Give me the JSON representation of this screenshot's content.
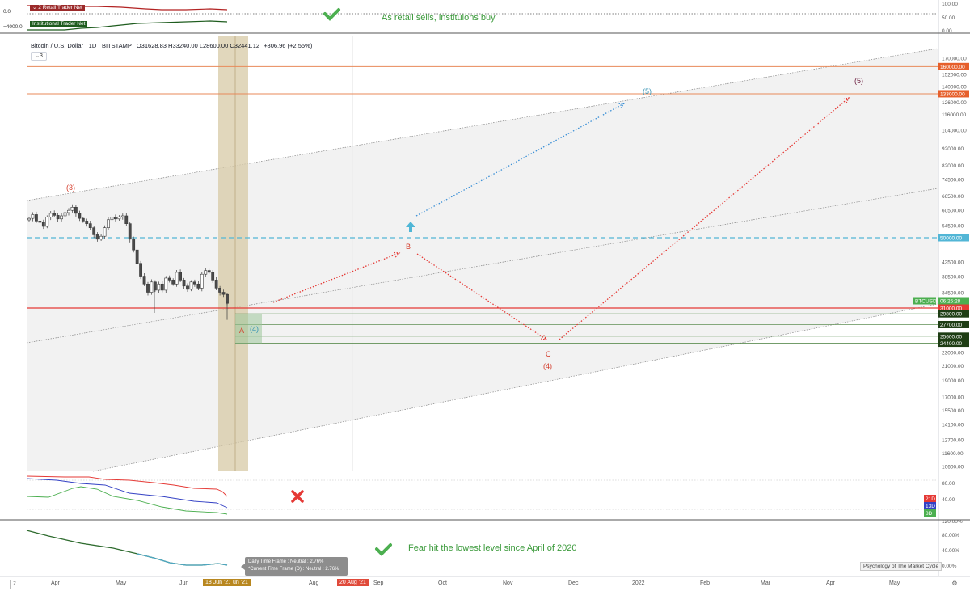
{
  "header": {
    "symbol": "Bitcoin / U.S. Dollar · 1D · BITSTAMP",
    "ohlc": "O31628.83 H33240.00 L28600.00 C32441.12",
    "change": "+806.96 (+2.55%)",
    "collapse_label": "3"
  },
  "top_pane": {
    "legend_ret": "Retail Trader Net",
    "legend_ret_prefix": "2",
    "legend_inst": "Institutional Trader Net",
    "left_values": [
      "0.0",
      "−4000.0"
    ],
    "right_ticks": [
      "100.00",
      "50.00",
      "0.00"
    ],
    "note": "As retail sells, instituions buy",
    "note_icon": "check-icon"
  },
  "mid_pane": {
    "right_ticks": [
      "80.00",
      "40.00"
    ],
    "badges": [
      "21D",
      "13D",
      "8D"
    ],
    "icon": "cross-icon"
  },
  "bottom_pane": {
    "right_ticks": [
      "120.00%",
      "80.00%",
      "40.00%",
      "0.00%"
    ],
    "note": "Fear hit the lowest level since April of 2020",
    "note_icon": "check-icon",
    "tooltip_line1": "Daily Time Frame : Neutral : 2.76%",
    "tooltip_line2": "*Current Time Frame (D) : Neutral : 2.76%",
    "watermark": "Psychology of The Market Cycle"
  },
  "x_axis": {
    "labels": [
      "Apr",
      "May",
      "Jun",
      "Aug",
      "Sep",
      "Oct",
      "Nov",
      "Dec",
      "2022",
      "Feb",
      "Mar",
      "Apr",
      "May"
    ],
    "highlight_1": "18 Jun '21",
    "highlight_1b": "un '21",
    "highlight_2": "20 Aug '21",
    "z_button": "Z"
  },
  "chart_data": {
    "type": "candlestick",
    "y_scale": "log",
    "y_ticks": [
      "170000.00",
      "152000.00",
      "140000.00",
      "126000.00",
      "116000.00",
      "104000.00",
      "92000.00",
      "82000.00",
      "74500.00",
      "66500.00",
      "60500.00",
      "54500.00",
      "50000.00",
      "42500.00",
      "38500.00",
      "34500.00",
      "31000.00",
      "27700.00",
      "25600.00",
      "24400.00",
      "23000.00",
      "21000.00",
      "19000.00",
      "17000.00",
      "15500.00",
      "14100.00",
      "12700.00",
      "11600.00",
      "10600.00"
    ],
    "price_labels": [
      {
        "text": "160000.00",
        "color": "#e65f2b"
      },
      {
        "text": "133000.00",
        "color": "#e65f2b"
      },
      {
        "text": "50000.00",
        "color": "#52b6d6"
      },
      {
        "text": "BTCUSD",
        "color": "#4caf50"
      },
      {
        "text": "06:25:28",
        "color": "#4caf50"
      },
      {
        "text": "31000.00",
        "color": "#e53935"
      },
      {
        "text": "29800.00",
        "color": "#1e3d14"
      },
      {
        "text": "27700.00",
        "color": "#1e3d14"
      },
      {
        "text": "25600.00",
        "color": "#1e3d14"
      },
      {
        "text": "24400.00",
        "color": "#1e3d14"
      }
    ],
    "series_close": [
      57000,
      58500,
      56000,
      55500,
      54000,
      57500,
      59000,
      58200,
      56800,
      58000,
      59300,
      60200,
      61500,
      59000,
      57000,
      56000,
      55000,
      53500,
      51000,
      49500,
      50500,
      53500,
      56500,
      57500,
      56800,
      57600,
      58000,
      55000,
      49500,
      46000,
      42000,
      38500,
      36500,
      34500,
      37000,
      35000,
      36500,
      35000,
      38000,
      37500,
      36500,
      39500,
      37500,
      36000,
      35200,
      37000,
      36500,
      35500,
      39000,
      40000,
      39500,
      37500,
      35500,
      34500,
      34000,
      32000
    ],
    "annotations": {
      "wave_3": "(3)",
      "wave_5_blue": "(5)",
      "wave_5_red": "(5)",
      "wave_4_blue": "(4)",
      "wave_4_red": "(4)",
      "A": "A",
      "B": "B",
      "C": "C"
    }
  }
}
